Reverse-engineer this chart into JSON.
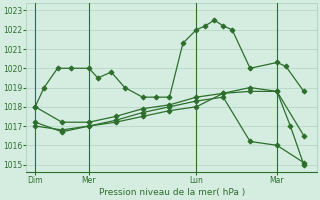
{
  "bg_color": "#d4ede0",
  "grid_color": "#a8ccb8",
  "line_color": "#2d6e2d",
  "xlabel": "Pression niveau de la mer( hPa )",
  "yticks": [
    1015,
    1016,
    1017,
    1018,
    1019,
    1020,
    1021,
    1022,
    1023
  ],
  "ylim": [
    1014.6,
    1023.4
  ],
  "xlim": [
    -2,
    63
  ],
  "xtick_labels": [
    "Dim",
    "Mer",
    "Lun",
    "Mar"
  ],
  "xtick_positions": [
    0,
    12,
    36,
    54
  ],
  "vlines": [
    0,
    12,
    36,
    54
  ],
  "series1_x": [
    0,
    2,
    5,
    8,
    12,
    14,
    17,
    20,
    24,
    27,
    30,
    33,
    36,
    38,
    40,
    42,
    44,
    48,
    54,
    56,
    60
  ],
  "series1_y": [
    1018,
    1019,
    1020,
    1020,
    1020,
    1019.5,
    1019.8,
    1019,
    1018.5,
    1018.5,
    1018.5,
    1021.3,
    1022,
    1022.2,
    1022.5,
    1022.2,
    1022,
    1020,
    1020.3,
    1020.1,
    1018.8
  ],
  "series2_x": [
    0,
    6,
    12,
    18,
    24,
    30,
    36,
    42,
    48,
    54,
    60
  ],
  "series2_y": [
    1018,
    1017.2,
    1017.2,
    1017.5,
    1017.9,
    1018.1,
    1018.5,
    1018.7,
    1018.8,
    1018.8,
    1016.5
  ],
  "series3_x": [
    0,
    6,
    12,
    18,
    24,
    30,
    36,
    42,
    48,
    54,
    60
  ],
  "series3_y": [
    1017,
    1016.8,
    1017.0,
    1017.3,
    1017.7,
    1018.0,
    1018.3,
    1018.5,
    1016.2,
    1016.0,
    1015.1
  ],
  "series4_x": [
    0,
    6,
    12,
    18,
    24,
    30,
    36,
    42,
    48,
    54,
    57,
    60
  ],
  "series4_y": [
    1017.2,
    1016.7,
    1017.0,
    1017.2,
    1017.5,
    1017.8,
    1018.0,
    1018.7,
    1019.0,
    1018.8,
    1017.0,
    1015.0
  ]
}
